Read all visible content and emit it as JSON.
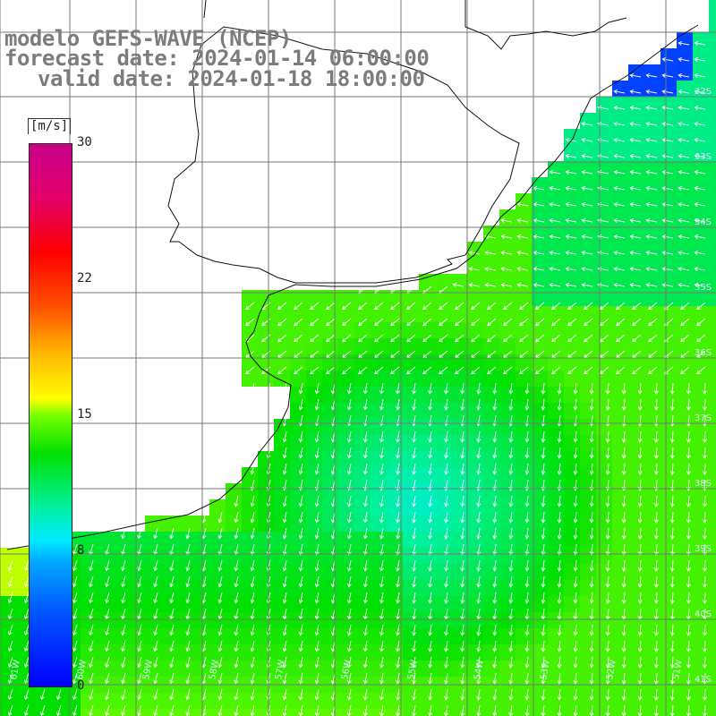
{
  "header": {
    "line1": "modelo GEFS-WAVE (NCEP)",
    "line2": "forecast date: 2024-01-14 06:00:00",
    "line3": "valid date: 2024-01-18 18:00:00"
  },
  "colorbar": {
    "unit_label": "[m/s]",
    "ticks": [
      "30",
      "22",
      "15",
      "8",
      "0"
    ],
    "range": [
      0,
      30
    ],
    "colors": [
      "#0000ff",
      "#00a8ff",
      "#00eaff",
      "#00e000",
      "#ffff00",
      "#ff5000",
      "#ff0000",
      "#c8008a"
    ]
  },
  "map": {
    "variable": "wind speed with wind direction vectors",
    "grid_lines": true,
    "lat_labels": [
      "32S",
      "33S",
      "34S",
      "35S",
      "36S",
      "37S",
      "38S",
      "39S",
      "40S",
      "41S"
    ],
    "lon_labels": [
      "61W",
      "60W",
      "59W",
      "58W",
      "57W",
      "56W",
      "55W",
      "54W",
      "53W",
      "52W",
      "51W",
      "50W"
    ],
    "background_color": "#ffffff"
  }
}
